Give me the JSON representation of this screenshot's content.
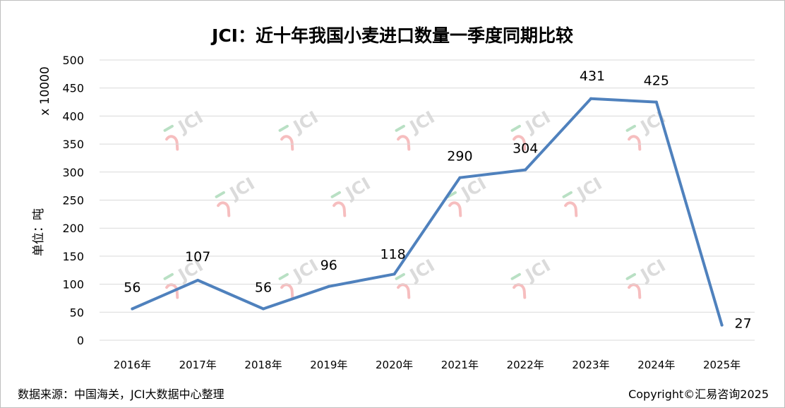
{
  "chart_data": {
    "type": "line",
    "title": "JCI：近十年我国小麦进口数量一季度同期比较",
    "ylabel": "单位：吨",
    "yunit": "x 10000",
    "categories": [
      "2016年",
      "2017年",
      "2018年",
      "2019年",
      "2020年",
      "2021年",
      "2022年",
      "2023年",
      "2024年",
      "2025年"
    ],
    "series": [
      {
        "values": [
          56,
          107,
          56,
          96,
          118,
          290,
          304,
          431,
          425,
          27
        ]
      }
    ],
    "data_labels": [
      "56",
      "107",
      "56",
      "96",
      "118",
      "290",
      "304",
      "431",
      "425",
      "27"
    ],
    "yticks": [
      "0",
      "50",
      "100",
      "150",
      "200",
      "250",
      "300",
      "350",
      "400",
      "450",
      "500"
    ],
    "ylim": [
      0,
      500
    ],
    "grid": true,
    "line_color": "#4f81bd",
    "watermark": "JCI"
  },
  "footer": {
    "source": "数据来源：中国海关，JCI大数据中心整理",
    "copyright": "Copyright©汇易咨询2025"
  }
}
